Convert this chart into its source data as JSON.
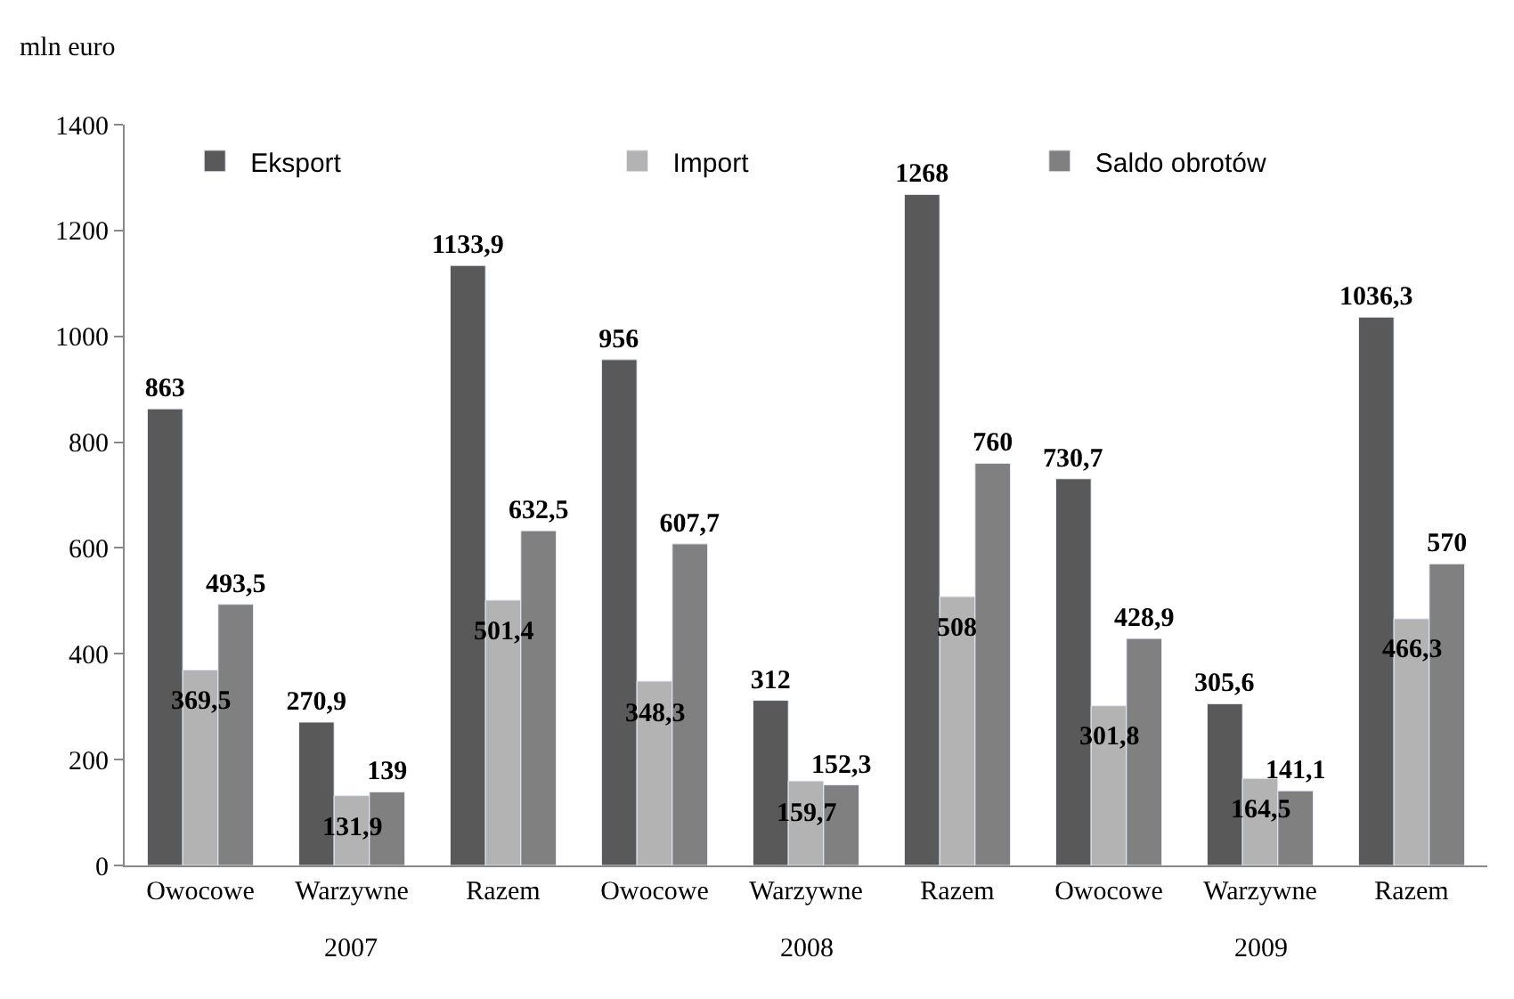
{
  "chart_data": {
    "type": "bar",
    "ylabel": "mln euro",
    "categories": [
      "Owocowe",
      "Warzywne",
      "Razem",
      "Owocowe",
      "Warzywne",
      "Razem",
      "Owocowe",
      "Warzywne",
      "Razem"
    ],
    "series": [
      {
        "name": "Eksport",
        "color": "#595959",
        "values": [
          863,
          270.9,
          1133.9,
          956,
          312,
          1268,
          730.7,
          305.6,
          1036.3
        ],
        "value_labels": [
          "863",
          "270,9",
          "1133,9",
          "956",
          "312",
          "1268",
          "730,7",
          "305,6",
          "1036,3"
        ]
      },
      {
        "name": "Import",
        "color": "#b3b3b3",
        "values": [
          369.5,
          131.9,
          501.4,
          348.3,
          159.7,
          508,
          301.8,
          164.5,
          466.3
        ],
        "value_labels": [
          "369,5",
          "131,9",
          "501,4",
          "348,3",
          "159,7",
          "508",
          "301,8",
          "164,5",
          "466,3"
        ]
      },
      {
        "name": "Saldo obrotów",
        "color": "#808080",
        "values": [
          493.5,
          139,
          632.5,
          607.7,
          152.3,
          760,
          428.9,
          141.1,
          570
        ],
        "value_labels": [
          "493,5",
          "139",
          "632,5",
          "607,7",
          "152,3",
          "760",
          "428,9",
          "141,1",
          "570"
        ]
      }
    ],
    "annotations": [
      "2007",
      "2008",
      "2009"
    ],
    "ylim": [
      0,
      1400
    ],
    "yticks": [
      0,
      200,
      400,
      600,
      800,
      1000,
      1200,
      1400
    ],
    "legend": "top"
  }
}
